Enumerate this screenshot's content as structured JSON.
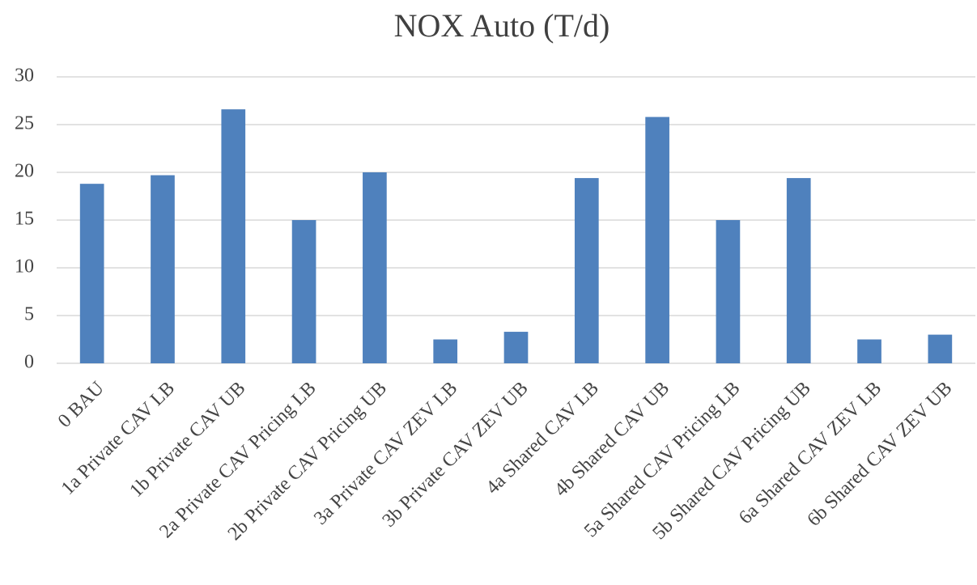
{
  "chart_data": {
    "type": "bar",
    "title": "NOX Auto (T/d)",
    "categories": [
      "0 BAU",
      "1a Private CAV LB",
      "1b Private CAV UB",
      "2a Private CAV Pricing LB",
      "2b Private CAV Pricing UB",
      "3a Private CAV ZEV LB",
      "3b Private CAV ZEV UB",
      "4a Shared CAV LB",
      "4b Shared CAV UB",
      "5a Shared CAV Pricing LB",
      "5b Shared CAV Pricing UB",
      "6a Shared CAV ZEV LB",
      "6b Shared CAV ZEV UB"
    ],
    "values": [
      18.8,
      19.7,
      26.6,
      15.0,
      20.0,
      2.5,
      3.3,
      19.4,
      25.8,
      15.0,
      19.4,
      2.5,
      3.0
    ],
    "color": "#4f81bd",
    "ylim": [
      0,
      30
    ],
    "yticks": [
      0,
      5,
      10,
      15,
      20,
      25,
      30
    ],
    "grid": true
  }
}
